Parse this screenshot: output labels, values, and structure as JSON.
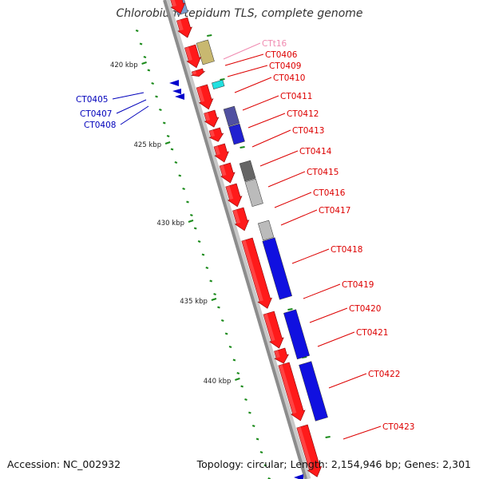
{
  "title": "Chlorobium tepidum TLS, complete genome",
  "footer": {
    "accession": "Accession: NC_002932",
    "summary": "Topology: circular; Length: 2,154,946 bp; Genes: 2,301"
  },
  "ticks": [
    "420 kbp",
    "425 kbp",
    "430 kbp",
    "435 kbp",
    "440 kbp"
  ],
  "colors": {
    "backbone": "#999999",
    "forward_gene": "#ff1a1a",
    "reverse_gene": "#0000cc",
    "tick_mark": "#1a8a1a",
    "rna_label": "#f08ab0",
    "cds_label_forward": "#dd0000",
    "cds_label_reverse": "#0000bb"
  },
  "genes": {
    "forward": [
      {
        "label": "CTt16",
        "kind": "rna"
      },
      {
        "label": "CT0406"
      },
      {
        "label": "CT0409"
      },
      {
        "label": "CT0410"
      },
      {
        "label": "CT0411"
      },
      {
        "label": "CT0412"
      },
      {
        "label": "CT0413"
      },
      {
        "label": "CT0414"
      },
      {
        "label": "CT0415"
      },
      {
        "label": "CT0416"
      },
      {
        "label": "CT0417"
      },
      {
        "label": "CT0418"
      },
      {
        "label": "CT0419"
      },
      {
        "label": "CT0420"
      },
      {
        "label": "CT0421"
      },
      {
        "label": "CT0422"
      },
      {
        "label": "CT0423"
      }
    ],
    "reverse": [
      {
        "label": "CT0405"
      },
      {
        "label": "CT0407"
      },
      {
        "label": "CT0408"
      }
    ]
  }
}
